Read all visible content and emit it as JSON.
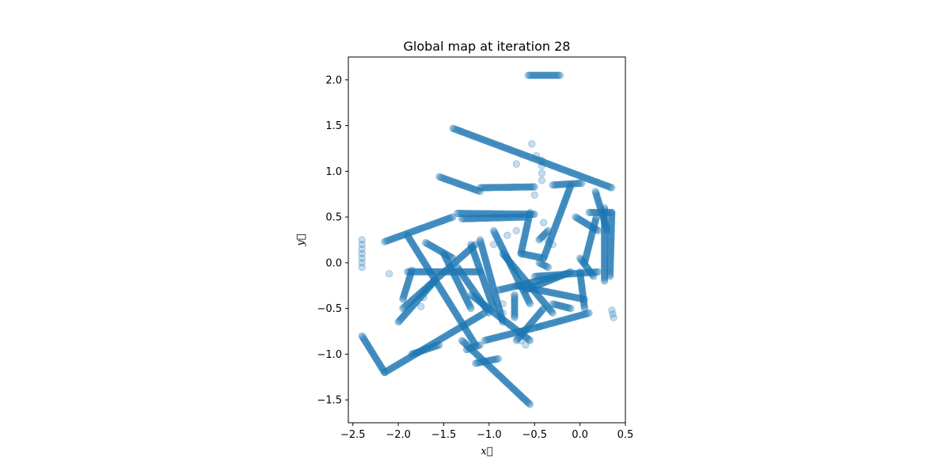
{
  "chart_data": {
    "type": "scatter",
    "title": "Global map at iteration 28",
    "xlabel": "x⃗",
    "ylabel": "y⃗",
    "xlim": [
      -2.55,
      0.5
    ],
    "ylim": [
      -1.75,
      2.25
    ],
    "xticks": [
      -2.5,
      -2.0,
      -1.5,
      -1.0,
      -0.5,
      0.0,
      0.5
    ],
    "yticks": [
      -1.5,
      -1.0,
      -0.5,
      0.0,
      0.5,
      1.0,
      1.5,
      2.0
    ],
    "xtick_labels": [
      "−2.5",
      "−2.0",
      "−1.5",
      "−1.0",
      "−0.5",
      "0.0",
      "0.5"
    ],
    "ytick_labels": [
      "−1.5",
      "−1.0",
      "−0.5",
      "0.0",
      "0.5",
      "1.0",
      "1.5",
      "2.0"
    ],
    "grid": false,
    "marker_color": "#1f77b4",
    "marker_alpha": 0.25,
    "tracks": [
      {
        "from": [
          -1.4,
          1.47
        ],
        "to": [
          0.35,
          0.82
        ]
      },
      {
        "from": [
          -1.55,
          0.94
        ],
        "to": [
          -1.1,
          0.78
        ]
      },
      {
        "from": [
          -1.1,
          0.82
        ],
        "to": [
          -0.5,
          0.83
        ]
      },
      {
        "from": [
          -0.3,
          0.85
        ],
        "to": [
          0.02,
          0.87
        ]
      },
      {
        "from": [
          -0.57,
          2.05
        ],
        "to": [
          -0.22,
          2.05
        ]
      },
      {
        "from": [
          -1.35,
          0.54
        ],
        "to": [
          -0.5,
          0.53
        ]
      },
      {
        "from": [
          -2.15,
          0.23
        ],
        "to": [
          -1.4,
          0.5
        ]
      },
      {
        "from": [
          -1.3,
          0.48
        ],
        "to": [
          -0.6,
          0.5
        ]
      },
      {
        "from": [
          -0.55,
          0.55
        ],
        "to": [
          -0.65,
          0.1
        ]
      },
      {
        "from": [
          -0.65,
          0.1
        ],
        "to": [
          -0.4,
          0.05
        ]
      },
      {
        "from": [
          -0.4,
          0.05
        ],
        "to": [
          -0.1,
          0.85
        ]
      },
      {
        "from": [
          -0.05,
          0.5
        ],
        "to": [
          0.2,
          0.35
        ]
      },
      {
        "from": [
          0.1,
          0.55
        ],
        "to": [
          0.35,
          0.55
        ]
      },
      {
        "from": [
          0.35,
          0.55
        ],
        "to": [
          0.33,
          -0.15
        ]
      },
      {
        "from": [
          0.27,
          0.6
        ],
        "to": [
          0.27,
          -0.2
        ]
      },
      {
        "from": [
          0.17,
          0.78
        ],
        "to": [
          0.3,
          0.35
        ]
      },
      {
        "from": [
          0.18,
          0.5
        ],
        "to": [
          0.05,
          0.0
        ]
      },
      {
        "from": [
          0.0,
          0.05
        ],
        "to": [
          0.15,
          -0.15
        ]
      },
      {
        "from": [
          -2.4,
          -0.8
        ],
        "to": [
          -2.15,
          -1.2
        ]
      },
      {
        "from": [
          -2.15,
          -1.2
        ],
        "to": [
          -1.05,
          -0.55
        ]
      },
      {
        "from": [
          -1.85,
          -1.0
        ],
        "to": [
          -1.55,
          -0.9
        ]
      },
      {
        "from": [
          -2.0,
          -0.65
        ],
        "to": [
          -1.6,
          -0.2
        ]
      },
      {
        "from": [
          -1.95,
          -0.5
        ],
        "to": [
          -1.15,
          0.2
        ]
      },
      {
        "from": [
          -1.95,
          -0.4
        ],
        "to": [
          -1.85,
          -0.08
        ]
      },
      {
        "from": [
          -1.9,
          -0.1
        ],
        "to": [
          -1.1,
          -0.1
        ]
      },
      {
        "from": [
          -1.7,
          0.22
        ],
        "to": [
          -1.4,
          0.05
        ]
      },
      {
        "from": [
          -1.9,
          0.3
        ],
        "to": [
          -1.15,
          -0.9
        ]
      },
      {
        "from": [
          -1.5,
          0.1
        ],
        "to": [
          -1.2,
          -0.5
        ]
      },
      {
        "from": [
          -1.35,
          -0.05
        ],
        "to": [
          -1.0,
          -0.55
        ]
      },
      {
        "from": [
          -1.2,
          -0.35
        ],
        "to": [
          -0.55,
          -0.85
        ]
      },
      {
        "from": [
          -1.05,
          -0.85
        ],
        "to": [
          -0.45,
          -0.7
        ]
      },
      {
        "from": [
          -0.45,
          -0.7
        ],
        "to": [
          0.1,
          -0.55
        ]
      },
      {
        "from": [
          -1.3,
          -0.85
        ],
        "to": [
          -0.55,
          -1.55
        ]
      },
      {
        "from": [
          -1.15,
          -1.1
        ],
        "to": [
          -0.9,
          -1.05
        ]
      },
      {
        "from": [
          -1.25,
          -0.95
        ],
        "to": [
          -1.1,
          -0.9
        ]
      },
      {
        "from": [
          -1.2,
          0.2
        ],
        "to": [
          -0.95,
          -0.5
        ]
      },
      {
        "from": [
          -1.1,
          0.25
        ],
        "to": [
          -0.85,
          -0.65
        ]
      },
      {
        "from": [
          -0.95,
          0.35
        ],
        "to": [
          -0.55,
          -0.45
        ]
      },
      {
        "from": [
          -0.85,
          0.1
        ],
        "to": [
          -0.3,
          -0.55
        ]
      },
      {
        "from": [
          -0.7,
          -0.25
        ],
        "to": [
          0.05,
          -0.4
        ]
      },
      {
        "from": [
          -0.9,
          -0.3
        ],
        "to": [
          -0.25,
          -0.15
        ]
      },
      {
        "from": [
          -0.6,
          -0.3
        ],
        "to": [
          -0.1,
          -0.1
        ]
      },
      {
        "from": [
          -0.5,
          -0.15
        ],
        "to": [
          0.2,
          -0.1
        ]
      },
      {
        "from": [
          -0.7,
          -0.85
        ],
        "to": [
          -0.4,
          -0.5
        ]
      },
      {
        "from": [
          -0.3,
          -0.45
        ],
        "to": [
          -0.1,
          -0.5
        ]
      },
      {
        "from": [
          0.0,
          -0.1
        ],
        "to": [
          0.05,
          -0.5
        ]
      },
      {
        "from": [
          -0.45,
          0.25
        ],
        "to": [
          -0.35,
          0.35
        ]
      },
      {
        "from": [
          -0.72,
          -0.6
        ],
        "to": [
          -0.72,
          -0.35
        ]
      },
      {
        "from": [
          -0.45,
          0.0
        ],
        "to": [
          -0.35,
          -0.05
        ]
      }
    ],
    "scatter_points": [
      [
        -2.4,
        0.25
      ],
      [
        -2.4,
        0.2
      ],
      [
        -2.4,
        0.15
      ],
      [
        -2.4,
        0.1
      ],
      [
        -2.4,
        0.05
      ],
      [
        -2.4,
        0.0
      ],
      [
        -2.4,
        -0.05
      ],
      [
        -2.1,
        -0.12
      ],
      [
        -1.75,
        -0.48
      ],
      [
        -1.72,
        -0.38
      ],
      [
        -1.7,
        -0.3
      ],
      [
        -0.53,
        1.3
      ],
      [
        -0.48,
        1.17
      ],
      [
        -0.42,
        1.12
      ],
      [
        -0.42,
        1.06
      ],
      [
        -0.42,
        0.98
      ],
      [
        -0.42,
        0.9
      ],
      [
        -0.7,
        1.08
      ],
      [
        -0.5,
        0.74
      ],
      [
        -0.4,
        0.44
      ],
      [
        -0.35,
        0.24
      ],
      [
        -0.3,
        0.2
      ],
      [
        0.35,
        -0.52
      ],
      [
        0.36,
        -0.56
      ],
      [
        0.37,
        -0.6
      ],
      [
        -0.85,
        -0.55
      ],
      [
        -0.85,
        -0.45
      ],
      [
        -0.6,
        -0.9
      ],
      [
        -0.65,
        -0.85
      ],
      [
        -0.95,
        0.2
      ],
      [
        -0.8,
        0.3
      ],
      [
        -0.7,
        0.35
      ]
    ]
  }
}
